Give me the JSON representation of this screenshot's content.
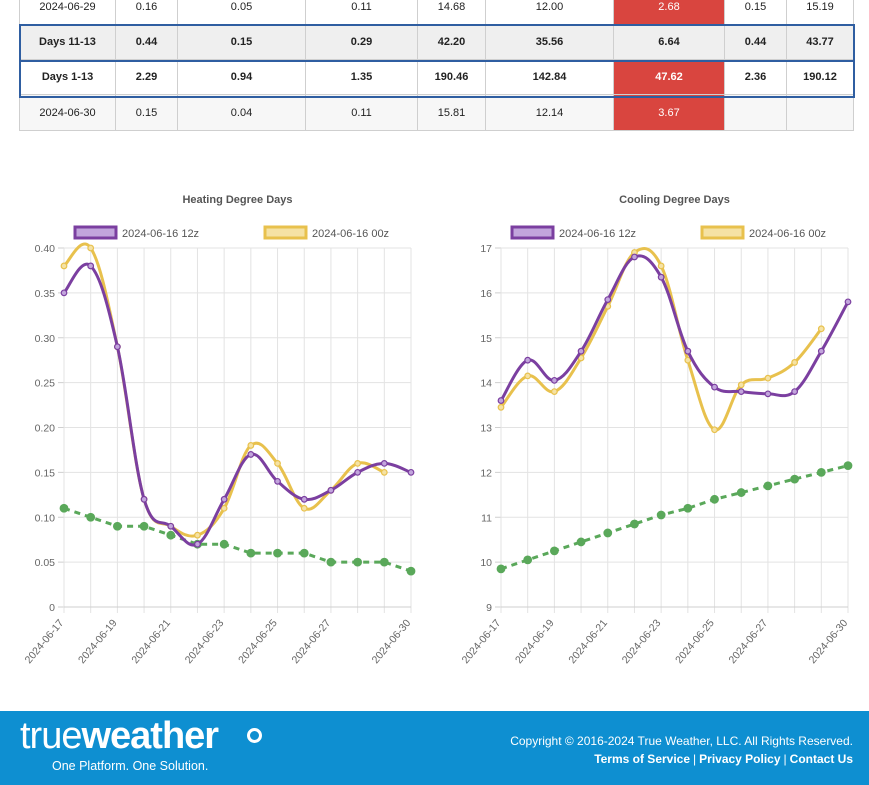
{
  "table": {
    "rows": [
      {
        "style": "plain",
        "cells": [
          "2024-06-29",
          "0.16",
          "0.05",
          "0.11",
          "14.68",
          "12.00",
          "2.68",
          "0.15",
          "15.19"
        ],
        "red": 6
      },
      {
        "style": "bold-grey",
        "cells": [
          "Days 11-13",
          "0.44",
          "0.15",
          "0.29",
          "42.20",
          "35.56",
          "6.64",
          "0.44",
          "43.77"
        ],
        "red": -1
      },
      {
        "style": "bold-white",
        "cells": [
          "Days 1-13",
          "2.29",
          "0.94",
          "1.35",
          "190.46",
          "142.84",
          "47.62",
          "2.36",
          "190.12"
        ],
        "red": 6
      },
      {
        "style": "plain-alt",
        "cells": [
          "2024-06-30",
          "0.15",
          "0.04",
          "0.11",
          "15.81",
          "12.14",
          "3.67",
          "",
          ""
        ],
        "red": 6
      }
    ]
  },
  "chart_data": [
    {
      "type": "line",
      "title": "Heating Degree Days",
      "x": [
        "2024-06-17",
        "2024-06-18",
        "2024-06-19",
        "2024-06-20",
        "2024-06-21",
        "2024-06-22",
        "2024-06-23",
        "2024-06-24",
        "2024-06-25",
        "2024-06-26",
        "2024-06-27",
        "2024-06-28",
        "2024-06-29",
        "2024-06-30"
      ],
      "xticks": [
        "2024-06-17",
        "2024-06-19",
        "2024-06-21",
        "2024-06-23",
        "2024-06-25",
        "2024-06-27",
        "2024-06-30"
      ],
      "ylim": [
        0,
        0.4
      ],
      "yticks": [
        "0",
        "0.05",
        "0.10",
        "0.15",
        "0.20",
        "0.25",
        "0.30",
        "0.35",
        "0.40"
      ],
      "series": [
        {
          "name": "2024-06-16 12z",
          "color": "#7b3fa0",
          "fill": "#c2a5dc",
          "values": [
            0.35,
            0.38,
            0.29,
            0.12,
            0.09,
            0.07,
            0.12,
            0.17,
            0.14,
            0.12,
            0.13,
            0.15,
            0.16,
            0.15
          ]
        },
        {
          "name": "2024-06-16 00z",
          "color": "#e8c14d",
          "fill": "#f5e2a4",
          "values": [
            0.38,
            0.4,
            0.29,
            0.12,
            0.09,
            0.08,
            0.11,
            0.18,
            0.16,
            0.11,
            0.13,
            0.16,
            0.15,
            null
          ]
        },
        {
          "name": "",
          "color": "#5aa85a",
          "dashed": true,
          "values": [
            0.11,
            0.1,
            0.09,
            0.09,
            0.08,
            0.07,
            0.07,
            0.06,
            0.06,
            0.06,
            0.05,
            0.05,
            0.05,
            0.04
          ]
        }
      ],
      "grid": true,
      "legend": "top"
    },
    {
      "type": "line",
      "title": "Cooling Degree Days",
      "x": [
        "2024-06-17",
        "2024-06-18",
        "2024-06-19",
        "2024-06-20",
        "2024-06-21",
        "2024-06-22",
        "2024-06-23",
        "2024-06-24",
        "2024-06-25",
        "2024-06-26",
        "2024-06-27",
        "2024-06-28",
        "2024-06-29",
        "2024-06-30"
      ],
      "xticks": [
        "2024-06-17",
        "2024-06-19",
        "2024-06-21",
        "2024-06-23",
        "2024-06-25",
        "2024-06-27",
        "2024-06-30"
      ],
      "ylim": [
        9,
        17
      ],
      "yticks": [
        "9",
        "10",
        "11",
        "12",
        "13",
        "14",
        "15",
        "16",
        "17"
      ],
      "series": [
        {
          "name": "2024-06-16 12z",
          "color": "#7b3fa0",
          "fill": "#c2a5dc",
          "values": [
            13.6,
            14.5,
            14.05,
            14.7,
            15.85,
            16.8,
            16.35,
            14.7,
            13.9,
            13.8,
            13.75,
            13.8,
            14.7,
            15.8
          ]
        },
        {
          "name": "2024-06-16 00z",
          "color": "#e8c14d",
          "fill": "#f5e2a4",
          "values": [
            13.45,
            14.15,
            13.8,
            14.55,
            15.7,
            16.9,
            16.6,
            14.5,
            12.95,
            13.95,
            14.1,
            14.45,
            15.2,
            null
          ]
        },
        {
          "name": "",
          "color": "#5aa85a",
          "dashed": true,
          "values": [
            9.85,
            10.05,
            10.25,
            10.45,
            10.65,
            10.85,
            11.05,
            11.2,
            11.4,
            11.55,
            11.7,
            11.85,
            12.0,
            12.15
          ]
        }
      ],
      "grid": true,
      "legend": "top"
    }
  ],
  "footer": {
    "logo_a": "true",
    "logo_b": "weather",
    "tagline": "One Platform. One Solution.",
    "copyright": "Copyright © 2016-2024 True Weather, LLC. All Rights Reserved.",
    "links": [
      "Terms of Service",
      "Privacy Policy",
      "Contact Us"
    ],
    "separator": "|"
  }
}
